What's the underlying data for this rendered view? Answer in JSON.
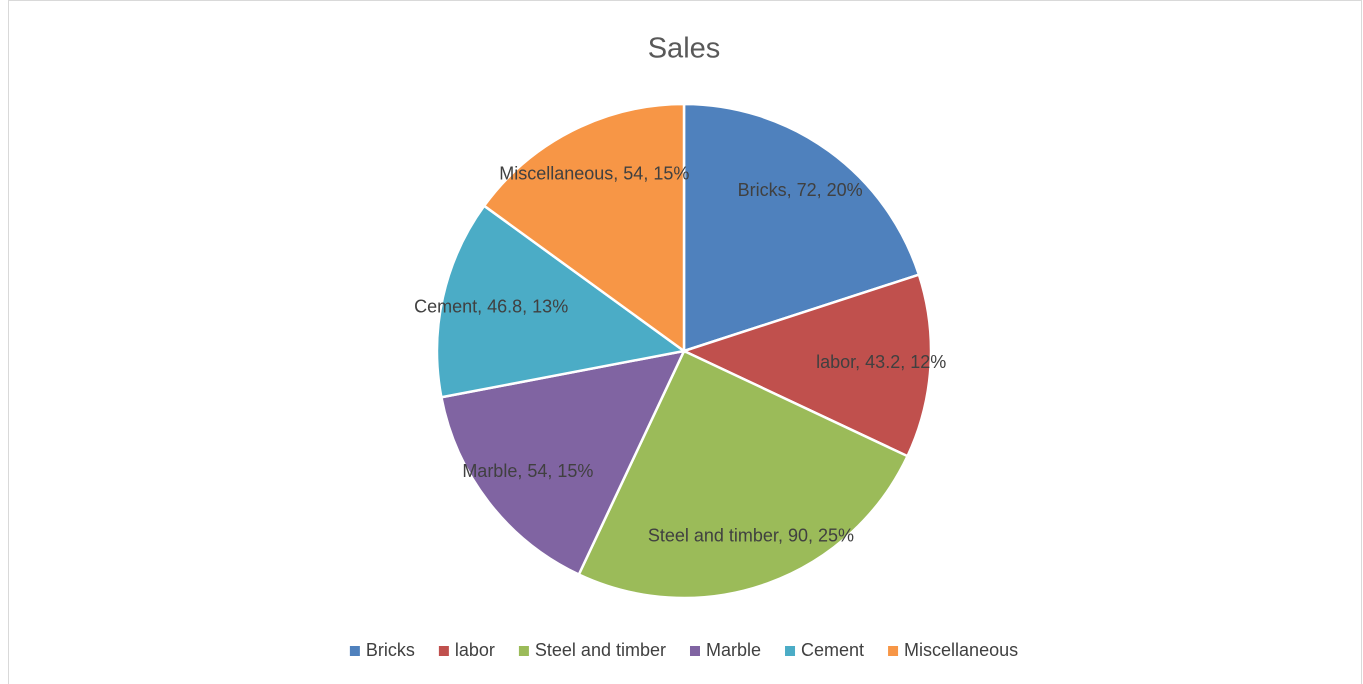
{
  "chart_data": {
    "type": "pie",
    "title": "Sales",
    "categories": [
      "Bricks",
      "labor",
      "Steel and timber",
      "Marble",
      "Cement",
      "Miscellaneous"
    ],
    "values": [
      72,
      43.2,
      90,
      54,
      46.8,
      54
    ],
    "value_labels": [
      "Bricks, 72, 20%",
      "labor, 43.2, 12%",
      "Steel and timber, 90, 25%",
      "Marble, 54, 15%",
      "Cement, 46.8, 13%",
      "Miscellaneous, 54, 15%"
    ],
    "colors": [
      "#4f81bd",
      "#c0504d",
      "#9bbb59",
      "#8064a2",
      "#4bacc6",
      "#f79646"
    ],
    "legend": "bottom"
  }
}
